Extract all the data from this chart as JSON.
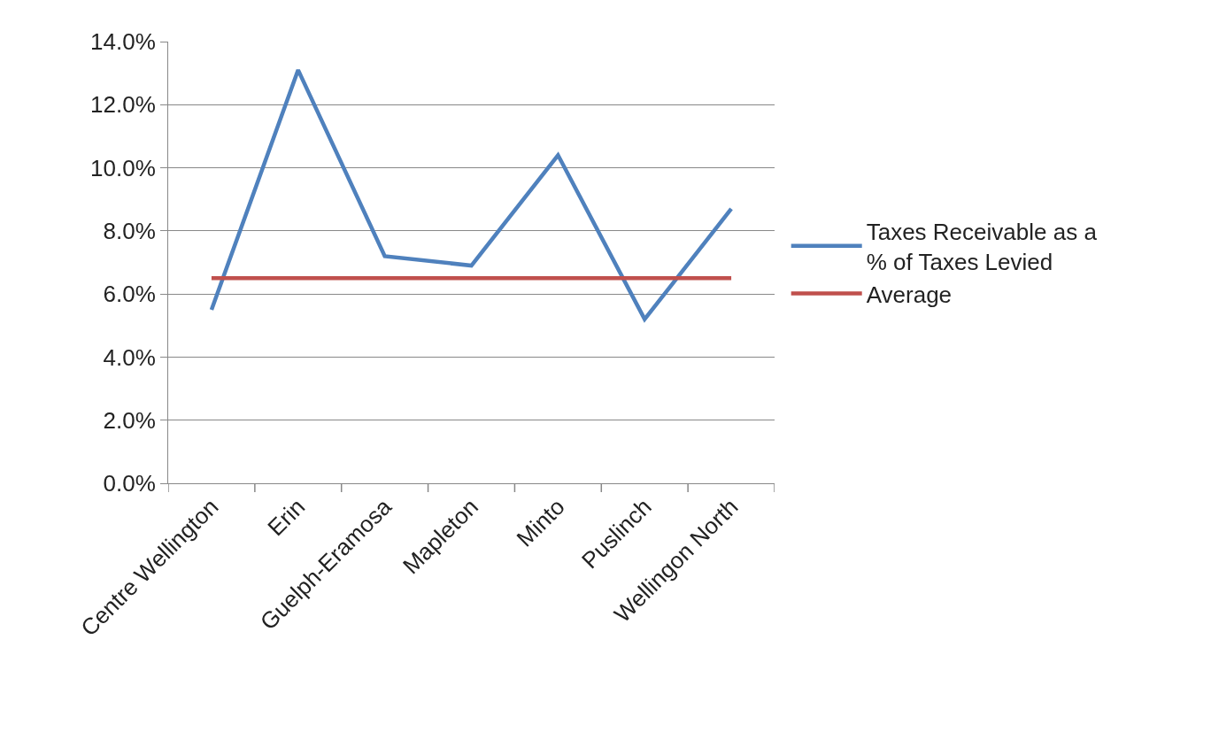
{
  "chart_data": {
    "type": "line",
    "categories": [
      "Centre Wellington",
      "Erin",
      "Guelph-Eramosa",
      "Mapleton",
      "Minto",
      "Puslinch",
      "Wellingon North"
    ],
    "series": [
      {
        "name": "Taxes Receivable as a % of Taxes Levied",
        "color": "#4f81bd",
        "values": [
          5.5,
          13.1,
          7.2,
          6.9,
          10.4,
          5.2,
          8.7
        ]
      },
      {
        "name": "Average",
        "color": "#c0504d",
        "values": [
          6.5,
          6.5,
          6.5,
          6.5,
          6.5,
          6.5,
          6.5
        ]
      }
    ],
    "ylim": [
      0,
      14
    ],
    "yticks": [
      {
        "value": 0,
        "label": "0.0%"
      },
      {
        "value": 2,
        "label": "2.0%"
      },
      {
        "value": 4,
        "label": "4.0%"
      },
      {
        "value": 6,
        "label": "6.0%"
      },
      {
        "value": 8,
        "label": "8.0%"
      },
      {
        "value": 10,
        "label": "10.0%"
      },
      {
        "value": 12,
        "label": "12.0%"
      },
      {
        "value": 14,
        "label": "14.0%"
      }
    ],
    "grid": "y",
    "legend": "right",
    "marker": "none",
    "line_style": "solid"
  }
}
